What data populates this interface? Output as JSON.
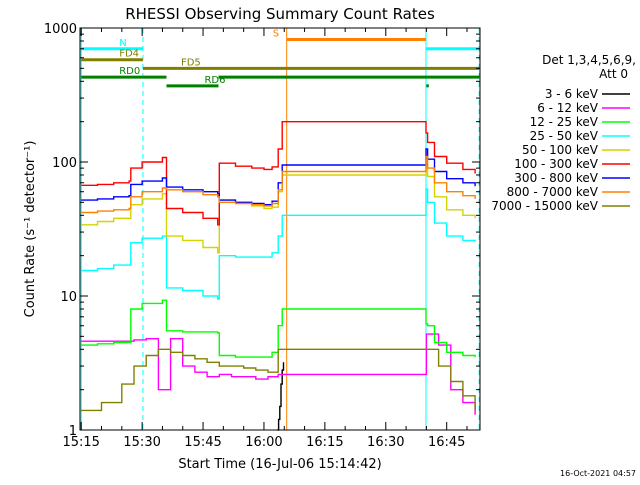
{
  "chart_data": {
    "type": "line",
    "title": "RHESSI Observing Summary Count Rates",
    "xlabel": "Start Time (16-Jul-06 15:14:42)",
    "ylabel": "Count Rate (s⁻¹ detector⁻¹)",
    "y_scale": "log",
    "ylim": [
      1,
      1000
    ],
    "y_ticks": [
      {
        "value": 1,
        "label": "1"
      },
      {
        "value": 10,
        "label": "10"
      },
      {
        "value": 100,
        "label": "100"
      },
      {
        "value": 1000,
        "label": "1000"
      }
    ],
    "xlim_minutes": [
      -0.3,
      98.2
    ],
    "x_ticks": [
      {
        "minute": 0,
        "label": "15:15"
      },
      {
        "minute": 15,
        "label": "15:30"
      },
      {
        "minute": 30,
        "label": "15:45"
      },
      {
        "minute": 45,
        "label": "16:00"
      },
      {
        "minute": 60,
        "label": "16:15"
      },
      {
        "minute": 75,
        "label": "16:30"
      },
      {
        "minute": 90,
        "label": "16:45"
      }
    ],
    "grid": false,
    "legend_position": "right",
    "legend_header": [
      "Det 1,3,4,5,6,9,",
      "Att 0"
    ],
    "footer_date": "16-Oct-2021 04:57",
    "series": [
      {
        "name": "3 - 6 keV",
        "color": "#000000",
        "x": [
          48.3,
          48.6,
          48.9,
          49.2,
          49.5,
          49.8
        ],
        "y": [
          1.0,
          1.2,
          1.5,
          2.2,
          2.8,
          3.2
        ]
      },
      {
        "name": "6 - 12 keV",
        "color": "#ff00ff",
        "x": [
          0,
          7,
          13,
          16,
          19,
          22,
          25,
          28,
          31,
          34,
          37,
          40,
          43,
          46,
          48.5,
          85,
          88,
          91,
          94,
          97
        ],
        "y": [
          4.6,
          4.6,
          4.7,
          4.8,
          2.0,
          4.8,
          3.0,
          2.7,
          2.5,
          2.6,
          2.5,
          2.5,
          2.4,
          2.5,
          2.6,
          5.2,
          4.3,
          2.0,
          1.6,
          1.3
        ]
      },
      {
        "name": "12 - 25 keV",
        "color": "#00ff00",
        "x": [
          0,
          4,
          8,
          11.8,
          12.2,
          15,
          20,
          21,
          25,
          30,
          33.6,
          34,
          38,
          42,
          45,
          47,
          48.5,
          49.5,
          84.9,
          85.3,
          87,
          90,
          94,
          97
        ],
        "y": [
          4.3,
          4.4,
          4.5,
          4.5,
          8.0,
          8.8,
          9.3,
          5.5,
          5.4,
          5.4,
          5.3,
          3.6,
          3.5,
          3.5,
          3.5,
          3.8,
          6.0,
          8.0,
          6.2,
          6.0,
          4.5,
          3.8,
          3.6,
          3.5
        ]
      },
      {
        "name": "25 - 50 keV",
        "color": "#00ffff",
        "x": [
          0,
          4,
          8,
          11.8,
          12.2,
          15,
          20,
          21,
          25,
          30,
          33.6,
          34,
          38,
          42,
          45,
          47,
          48.5,
          49.5,
          84.9,
          85.3,
          87,
          90,
          94,
          97
        ],
        "y": [
          15.5,
          16.0,
          17.0,
          17.0,
          25.0,
          27.0,
          28.0,
          11.5,
          11.0,
          10.0,
          9.5,
          20.0,
          19.5,
          19.5,
          19.5,
          21.0,
          28.0,
          40.0,
          63.0,
          50.0,
          35.0,
          28.0,
          26.0,
          25.5
        ]
      },
      {
        "name": "50 - 100 keV",
        "color": "#d4d400",
        "x": [
          0,
          4,
          8,
          11.8,
          12.2,
          15,
          20,
          21,
          25,
          30,
          33.6,
          34,
          38,
          42,
          45,
          47,
          48.5,
          49.5,
          84.9,
          85.3,
          87,
          90,
          94,
          97
        ],
        "y": [
          34.0,
          36.0,
          38.0,
          38.0,
          48.0,
          53.0,
          58.0,
          28.0,
          26.0,
          23.0,
          21.0,
          52.0,
          50.0,
          47.0,
          45.0,
          46.0,
          60.0,
          80.0,
          95.0,
          78.0,
          55.0,
          44.0,
          40.0,
          38.0
        ]
      },
      {
        "name": "100 - 300 keV",
        "color": "#ff0000",
        "x": [
          0,
          4,
          8,
          11.8,
          12.2,
          15,
          20,
          21,
          25,
          30,
          33.6,
          34,
          38,
          42,
          45,
          47,
          48.5,
          49.5,
          84.9,
          85.3,
          87,
          90,
          94,
          97
        ],
        "y": [
          67.0,
          68.0,
          70.0,
          72.0,
          90.0,
          100.0,
          108.0,
          45.0,
          42.0,
          38.0,
          34.0,
          98.0,
          93.0,
          90.0,
          88.0,
          92.0,
          125.0,
          200.0,
          165.0,
          140.0,
          110.0,
          98.0,
          88.0,
          82.0
        ]
      },
      {
        "name": "300 - 800 keV",
        "color": "#0000ff",
        "x": [
          0,
          4,
          8,
          11.8,
          12.2,
          15,
          20,
          21,
          25,
          30,
          33.6,
          34,
          38,
          42,
          45,
          47,
          48.5,
          49.5,
          84.9,
          85.3,
          87,
          90,
          94,
          97
        ],
        "y": [
          52.0,
          53.0,
          55.0,
          56.0,
          68.0,
          72.0,
          76.0,
          65.0,
          62.0,
          60.0,
          58.0,
          52.0,
          50.0,
          49.0,
          48.0,
          51.0,
          70.0,
          95.0,
          125.0,
          105.0,
          85.0,
          75.0,
          70.0,
          66.0
        ]
      },
      {
        "name": "800 - 7000 keV",
        "color": "#ff8000",
        "x": [
          0,
          4,
          8,
          11.8,
          12.2,
          15,
          20,
          21,
          25,
          30,
          33.6,
          34,
          38,
          42,
          45,
          47,
          48.5,
          49.5,
          84.9,
          85.3,
          87,
          90,
          94,
          97
        ],
        "y": [
          42.0,
          43.0,
          44.0,
          45.0,
          55.0,
          60.0,
          64.0,
          62.0,
          60.0,
          57.0,
          55.0,
          50.0,
          49.0,
          48.0,
          47.0,
          49.0,
          62.0,
          85.0,
          110.0,
          90.0,
          70.0,
          60.0,
          56.0,
          53.0
        ]
      },
      {
        "name": "7000 - 15000 keV",
        "color": "#808000",
        "x": [
          0,
          5,
          10,
          13,
          16,
          19,
          22,
          25,
          28,
          31,
          34,
          37,
          40,
          43,
          46,
          48.5,
          85,
          88,
          91,
          94,
          97
        ],
        "y": [
          1.4,
          1.6,
          2.2,
          3.0,
          3.6,
          4.0,
          3.8,
          3.6,
          3.4,
          3.2,
          3.0,
          3.0,
          2.9,
          2.8,
          2.7,
          4.0,
          4.0,
          3.0,
          2.3,
          1.8,
          1.4
        ]
      }
    ],
    "vertical_markers": [
      {
        "minute": 0,
        "color": "#00ffff",
        "style": "solid"
      },
      {
        "minute": 15.2,
        "color": "#00ffff",
        "style": "dashed"
      },
      {
        "minute": 50.6,
        "color": "#ff8000",
        "style": "solid"
      },
      {
        "minute": 84.9,
        "color": "#00ffff",
        "style": "solid"
      },
      {
        "minute": 98.0,
        "color": "#00ffff",
        "style": "dashed"
      }
    ],
    "flag_bars": [
      {
        "label": "N",
        "color": "#00ffff",
        "y": 700,
        "spans": [
          [
            0,
            15.2
          ],
          [
            84.9,
            98.0
          ]
        ]
      },
      {
        "label": "S",
        "color": "#ff8000",
        "y": 820,
        "spans": [
          [
            50.6,
            84.9
          ]
        ]
      },
      {
        "label": "FD4",
        "color": "#808000",
        "y": 580,
        "spans": [
          [
            0,
            15.2
          ]
        ]
      },
      {
        "label": "FD5",
        "color": "#808000",
        "y": 500,
        "spans": [
          [
            15.2,
            98.0
          ]
        ]
      },
      {
        "label": "RD0",
        "color": "#008000",
        "y": 430,
        "spans": [
          [
            0,
            21.0
          ],
          [
            33.8,
            98.0
          ]
        ]
      },
      {
        "label": "RD6",
        "color": "#008000",
        "y": 370,
        "spans": [
          [
            21.0,
            33.8
          ],
          [
            85.0,
            85.6
          ]
        ]
      }
    ]
  }
}
